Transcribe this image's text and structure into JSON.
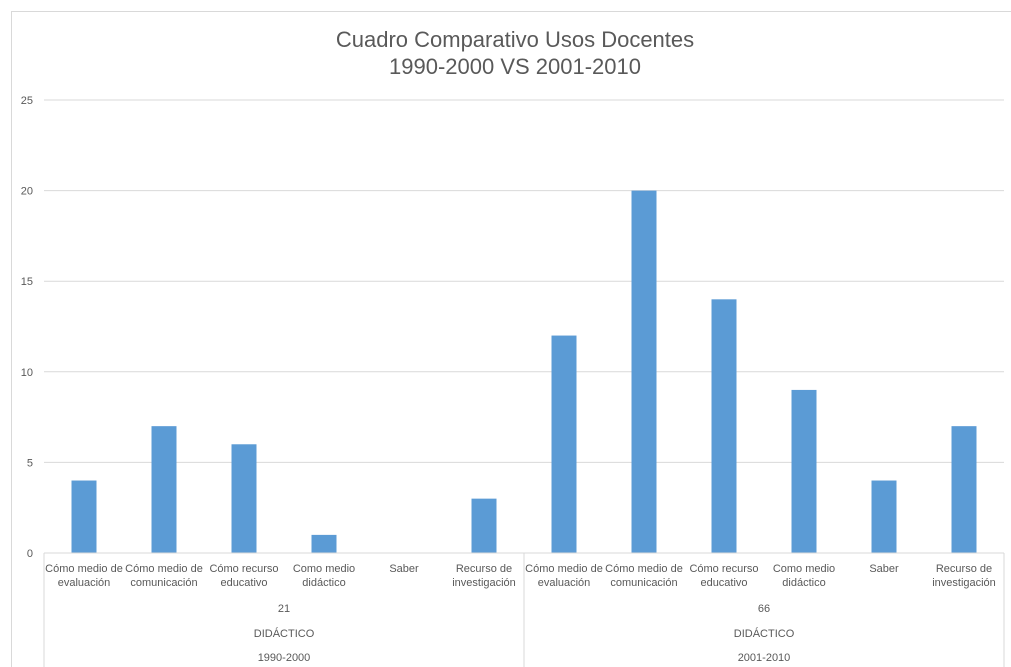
{
  "chart_data": {
    "type": "bar",
    "title": [
      "Cuadro Comparativo Usos Docentes",
      "1990-2000 VS 2001-2010"
    ],
    "xlabel": "",
    "ylabel": "",
    "ylim": [
      0,
      25
    ],
    "yticks": [
      "0",
      "5",
      "10",
      "15",
      "20",
      "25"
    ],
    "grid": true,
    "legend": "none",
    "bar_color": "#5b9bd5",
    "groups": [
      {
        "period": "1990-2000",
        "level2": "DIDÁCTICO",
        "level1": "21",
        "categories": [
          [
            "Cómo medio de",
            "evaluación"
          ],
          [
            "Cómo medio de",
            "comunicación"
          ],
          [
            "Cómo recurso",
            "educativo"
          ],
          [
            "Como medio",
            "didáctico"
          ],
          [
            "Saber"
          ],
          [
            "Recurso de",
            "investigación"
          ]
        ],
        "values": [
          4,
          7,
          6,
          1,
          0,
          3
        ]
      },
      {
        "period": "2001-2010",
        "level2": "DIDÁCTICO",
        "level1": "66",
        "categories": [
          [
            "Cómo medio de",
            "evaluación"
          ],
          [
            "Cómo medio de",
            "comunicación"
          ],
          [
            "Cómo recurso",
            "educativo"
          ],
          [
            "Como medio",
            "didáctico"
          ],
          [
            "Saber"
          ],
          [
            "Recurso de",
            "investigación"
          ]
        ],
        "values": [
          12,
          20,
          14,
          9,
          4,
          7
        ]
      }
    ]
  }
}
